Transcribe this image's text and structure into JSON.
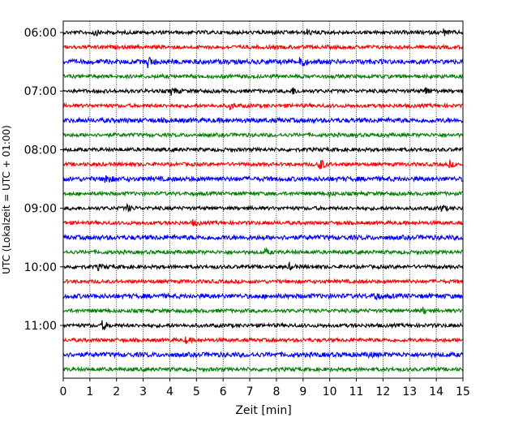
{
  "chart_data": {
    "type": "line",
    "title": "",
    "xlabel": "Zeit  [min]",
    "ylabel": "UTC (Lokalzeit = UTC + 01:00)",
    "xlim": [
      0,
      15
    ],
    "x_ticks": [
      "0",
      "1",
      "2",
      "3",
      "4",
      "5",
      "6",
      "7",
      "8",
      "9",
      "10",
      "11",
      "12",
      "13",
      "14",
      "15"
    ],
    "y_ticks": [
      "06:00",
      "07:00",
      "08:00",
      "09:00",
      "10:00",
      "11:00"
    ],
    "y_tick_rows": [
      0,
      4,
      8,
      12,
      16,
      20
    ],
    "grid": "vertical dotted",
    "trace_interval_min": 15,
    "colors": [
      "#000000",
      "#ff0000",
      "#0000ff",
      "#008000"
    ],
    "series": [
      {
        "start": "06:00",
        "events": [
          {
            "x": 1.2,
            "amp": 0.3
          },
          {
            "x": 9.2,
            "amp": 0.25
          },
          {
            "x": 14.3,
            "amp": 0.3
          }
        ]
      },
      {
        "start": "06:15",
        "events": []
      },
      {
        "start": "06:30",
        "events": [
          {
            "x": 3.2,
            "amp": 0.6
          },
          {
            "x": 8.9,
            "amp": 0.8
          }
        ]
      },
      {
        "start": "06:45",
        "events": []
      },
      {
        "start": "07:00",
        "events": [
          {
            "x": 4.1,
            "amp": 0.4
          },
          {
            "x": 8.6,
            "amp": 0.4
          },
          {
            "x": 13.6,
            "amp": 0.5
          }
        ]
      },
      {
        "start": "07:15",
        "events": [
          {
            "x": 6.3,
            "amp": 0.3
          }
        ]
      },
      {
        "start": "07:30",
        "events": []
      },
      {
        "start": "07:45",
        "events": []
      },
      {
        "start": "08:00",
        "events": []
      },
      {
        "start": "08:15",
        "events": [
          {
            "x": 9.6,
            "amp": 1.0
          },
          {
            "x": 14.5,
            "amp": 0.3
          }
        ]
      },
      {
        "start": "08:30",
        "events": [
          {
            "x": 1.6,
            "amp": 0.6
          }
        ]
      },
      {
        "start": "08:45",
        "events": [
          {
            "x": 10.0,
            "amp": 0.25
          }
        ]
      },
      {
        "start": "09:00",
        "events": [
          {
            "x": 2.4,
            "amp": 0.4
          },
          {
            "x": 14.2,
            "amp": 0.4
          }
        ]
      },
      {
        "start": "09:15",
        "events": [
          {
            "x": 4.9,
            "amp": 0.3
          }
        ]
      },
      {
        "start": "09:30",
        "events": []
      },
      {
        "start": "09:45",
        "events": [
          {
            "x": 7.6,
            "amp": 0.3
          }
        ]
      },
      {
        "start": "10:00",
        "events": [
          {
            "x": 1.3,
            "amp": 0.3
          },
          {
            "x": 8.5,
            "amp": 0.3
          }
        ]
      },
      {
        "start": "10:15",
        "events": []
      },
      {
        "start": "10:30",
        "events": [
          {
            "x": 11.7,
            "amp": 0.4
          }
        ]
      },
      {
        "start": "10:45",
        "events": [
          {
            "x": 13.5,
            "amp": 0.35
          }
        ]
      },
      {
        "start": "11:00",
        "events": [
          {
            "x": 1.5,
            "amp": 0.5
          }
        ]
      },
      {
        "start": "11:15",
        "events": [
          {
            "x": 4.6,
            "amp": 0.3
          }
        ]
      },
      {
        "start": "11:30",
        "events": [
          {
            "x": 11.5,
            "amp": 0.2
          }
        ]
      },
      {
        "start": "11:45",
        "events": []
      }
    ]
  }
}
